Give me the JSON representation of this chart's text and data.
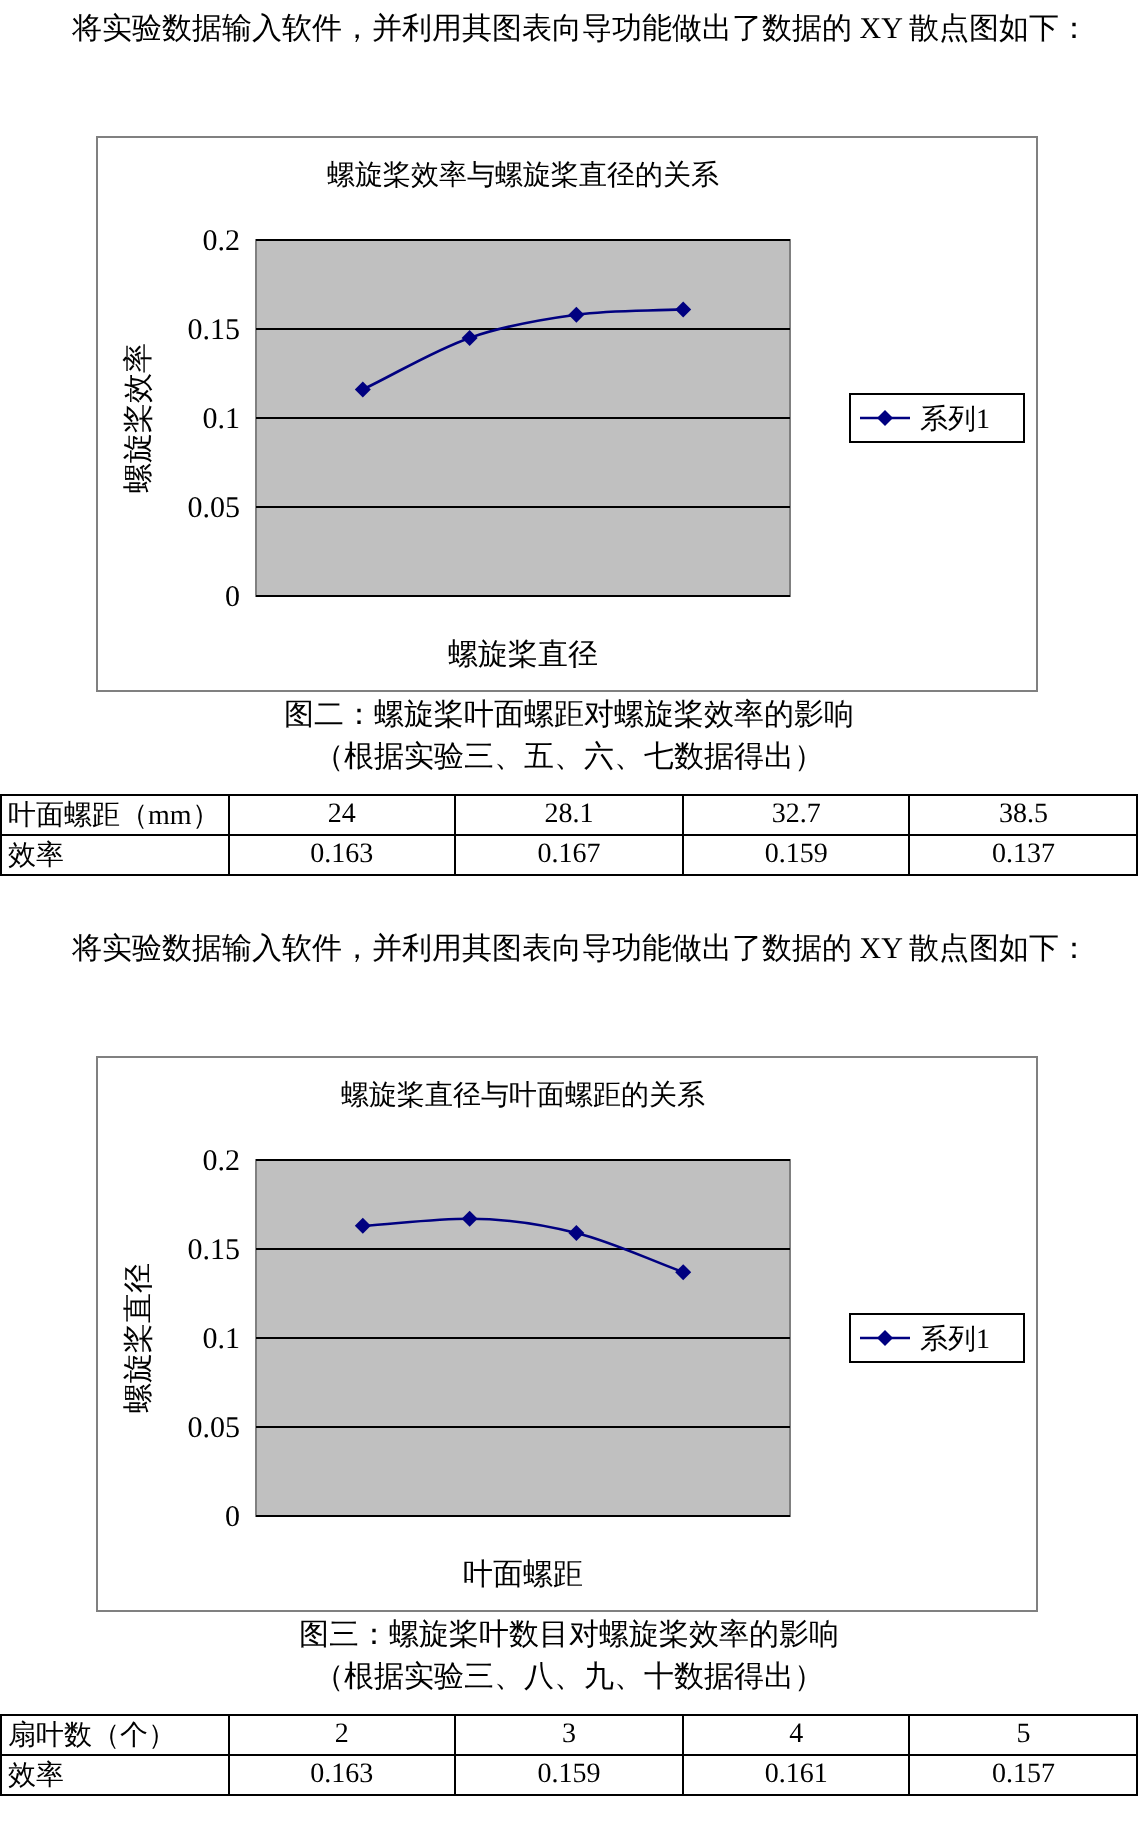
{
  "chart_data": [
    {
      "type": "line",
      "title": "螺旋桨效率与螺旋桨直径的关系",
      "xlabel": "螺旋桨直径",
      "ylabel": "螺旋桨效率",
      "categories": [
        null,
        null,
        null,
        null
      ],
      "series": [
        {
          "name": "系列1",
          "color": "#000080",
          "values": [
            0.116,
            0.145,
            0.158,
            0.161
          ]
        }
      ],
      "ylim": [
        0,
        0.2
      ],
      "yticks": [
        0,
        0.05,
        0.1,
        0.15,
        0.2
      ],
      "grid": "y",
      "legend": "right",
      "marker": "diamond",
      "annotations": [
        "将实验数据输入软件，并利用其图表向导功能做出了数据的 XY 散点图如下：",
        "图二：螺旋桨叶面螺距对螺旋桨效率的影响",
        "（根据实验三、五、六、七数据得出）",
        "叶面螺距（mm）",
        "24",
        "28.1",
        "32.7",
        "38.5",
        "效率",
        "0.163",
        "0.167",
        "0.159",
        "0.137"
      ]
    },
    {
      "type": "line",
      "title": "螺旋桨直径与叶面螺距的关系",
      "xlabel": "叶面螺距",
      "ylabel": "螺旋桨直径",
      "categories": [
        null,
        null,
        null,
        null
      ],
      "series": [
        {
          "name": "系列1",
          "color": "#000080",
          "values": [
            0.163,
            0.167,
            0.159,
            0.137
          ]
        }
      ],
      "ylim": [
        0,
        0.2
      ],
      "yticks": [
        0,
        0.05,
        0.1,
        0.15,
        0.2
      ],
      "grid": "y",
      "legend": "right",
      "marker": "diamond",
      "annotations": [
        "将实验数据输入软件，并利用其图表向导功能做出了数据的 XY 散点图如下：",
        "图三：螺旋桨叶数目对螺旋桨效率的影响",
        "（根据实验三、八、九、十数据得出）",
        "扇叶数（个）",
        "2",
        "3",
        "4",
        "5",
        "效率",
        "0.163",
        "0.159",
        "0.161",
        "0.157"
      ]
    }
  ]
}
